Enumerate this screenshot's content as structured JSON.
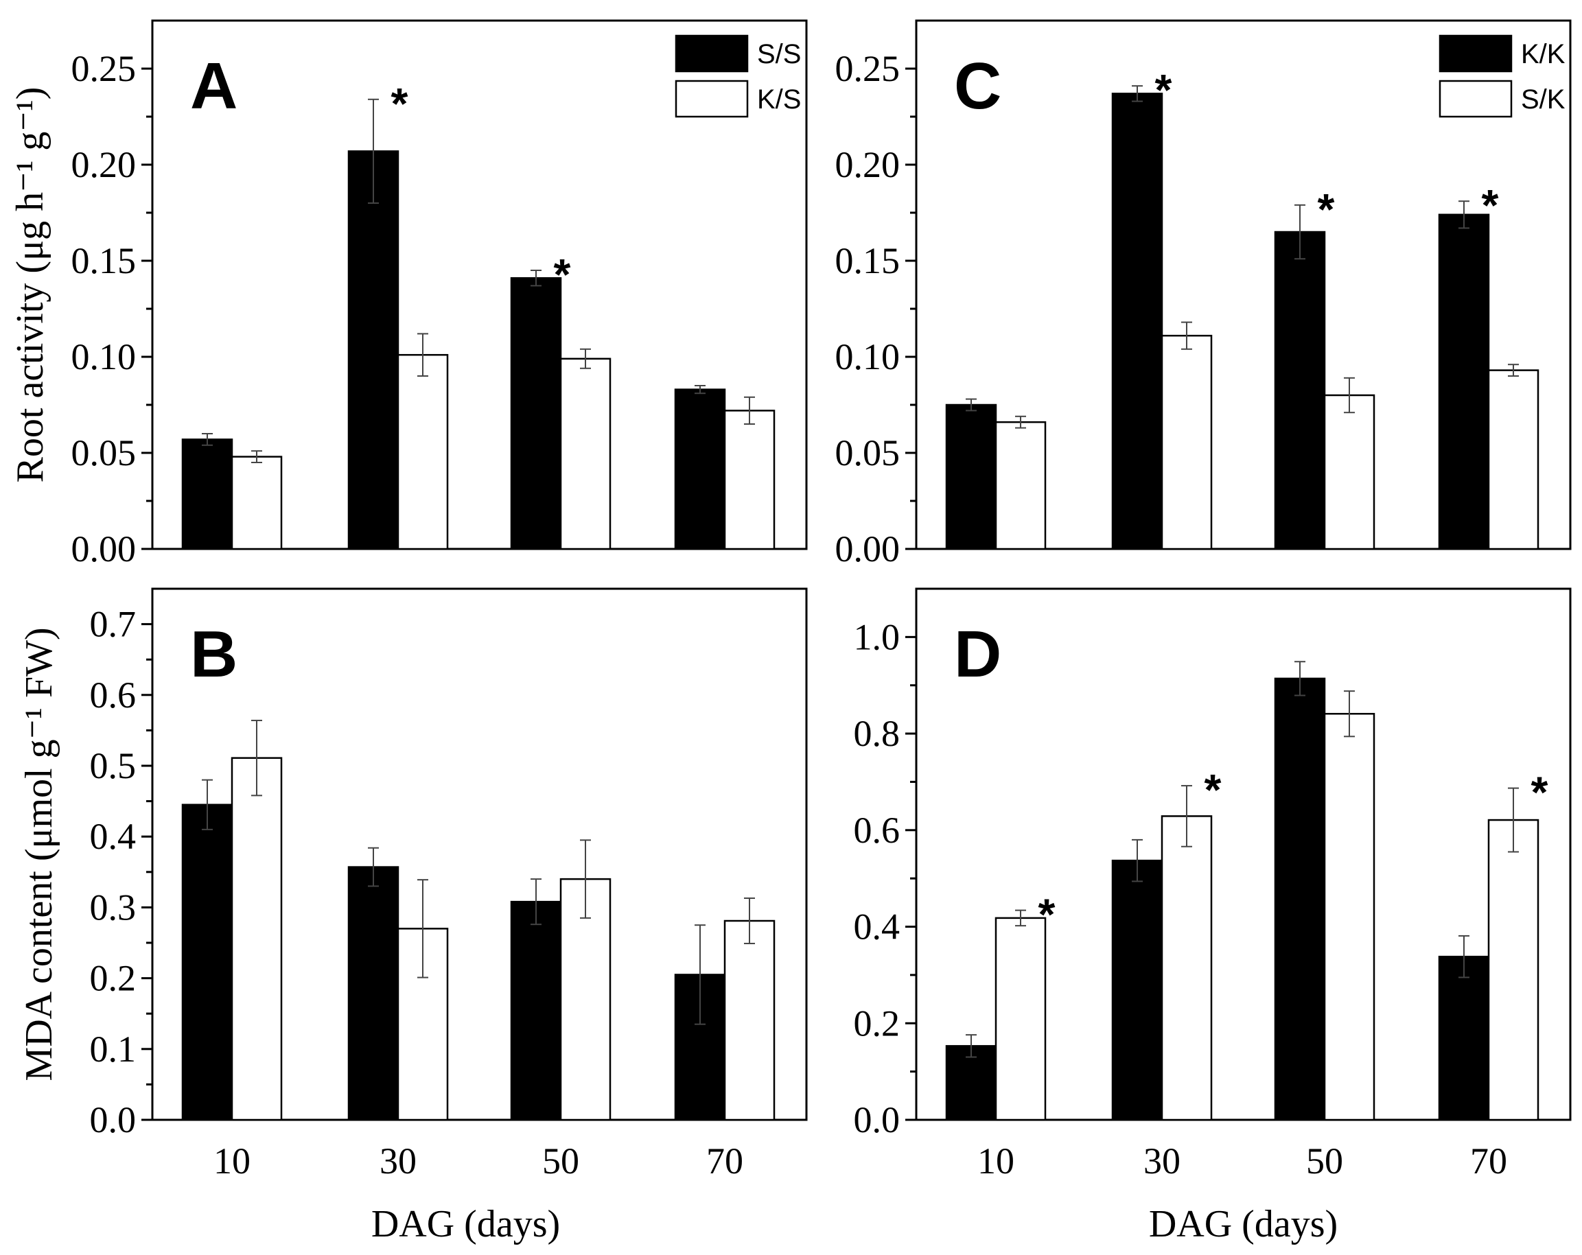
{
  "chart_data": [
    {
      "id": "A",
      "type": "bar",
      "panel_label": "A",
      "categories": [
        "10",
        "30",
        "50",
        "70"
      ],
      "series": [
        {
          "name": "S/S",
          "fill": "#000000",
          "values": [
            0.057,
            0.207,
            0.141,
            0.083
          ],
          "errors": [
            0.003,
            0.027,
            0.004,
            0.002
          ]
        },
        {
          "name": "K/S",
          "fill": "#ffffff",
          "values": [
            0.048,
            0.101,
            0.099,
            0.072
          ],
          "errors": [
            0.003,
            0.011,
            0.005,
            0.007
          ]
        }
      ],
      "significance": [
        "",
        "*",
        "*",
        ""
      ],
      "ylim": [
        0,
        0.275
      ],
      "yticks": [
        "0.00",
        "0.05",
        "0.10",
        "0.15",
        "0.20",
        "0.25"
      ],
      "ylabel": "Root activity (μg h⁻¹ g⁻¹)",
      "xlabel": "",
      "legend_position": "top-right"
    },
    {
      "id": "C",
      "type": "bar",
      "panel_label": "C",
      "categories": [
        "10",
        "30",
        "50",
        "70"
      ],
      "series": [
        {
          "name": "K/K",
          "fill": "#000000",
          "values": [
            0.075,
            0.237,
            0.165,
            0.174
          ],
          "errors": [
            0.003,
            0.004,
            0.014,
            0.007
          ]
        },
        {
          "name": "S/K",
          "fill": "#ffffff",
          "values": [
            0.066,
            0.111,
            0.08,
            0.093
          ],
          "errors": [
            0.003,
            0.007,
            0.009,
            0.003
          ]
        }
      ],
      "significance": [
        "",
        "*",
        "*",
        "*"
      ],
      "ylim": [
        0,
        0.275
      ],
      "yticks": [
        "0.00",
        "0.05",
        "0.10",
        "0.15",
        "0.20",
        "0.25"
      ],
      "ylabel": "",
      "xlabel": "",
      "legend_position": "top-right"
    },
    {
      "id": "B",
      "type": "bar",
      "panel_label": "B",
      "categories": [
        "10",
        "30",
        "50",
        "70"
      ],
      "series": [
        {
          "name": "S/S",
          "fill": "#000000",
          "values": [
            0.445,
            0.357,
            0.308,
            0.205
          ],
          "errors": [
            0.035,
            0.027,
            0.032,
            0.07
          ]
        },
        {
          "name": "K/S",
          "fill": "#ffffff",
          "values": [
            0.511,
            0.27,
            0.34,
            0.281
          ],
          "errors": [
            0.053,
            0.069,
            0.055,
            0.032
          ]
        }
      ],
      "significance": [
        "",
        "",
        "",
        ""
      ],
      "ylim": [
        0,
        0.75
      ],
      "yticks": [
        "0.0",
        "0.1",
        "0.2",
        "0.3",
        "0.4",
        "0.5",
        "0.6",
        "0.7"
      ],
      "ylabel": "MDA content (μmol g⁻¹ FW)",
      "xlabel": "DAG (days)"
    },
    {
      "id": "D",
      "type": "bar",
      "panel_label": "D",
      "categories": [
        "10",
        "30",
        "50",
        "70"
      ],
      "series": [
        {
          "name": "K/K",
          "fill": "#000000",
          "values": [
            0.153,
            0.537,
            0.914,
            0.338
          ],
          "errors": [
            0.023,
            0.043,
            0.035,
            0.043
          ]
        },
        {
          "name": "S/K",
          "fill": "#ffffff",
          "values": [
            0.418,
            0.629,
            0.841,
            0.621
          ],
          "errors": [
            0.016,
            0.063,
            0.047,
            0.066
          ]
        }
      ],
      "significance": [
        "*",
        "*",
        "",
        "*"
      ],
      "ylim": [
        0,
        1.1
      ],
      "yticks": [
        "0.0",
        "0.2",
        "0.4",
        "0.6",
        "0.8",
        "1.0"
      ],
      "ylabel": "",
      "xlabel": "DAG (days)"
    }
  ]
}
